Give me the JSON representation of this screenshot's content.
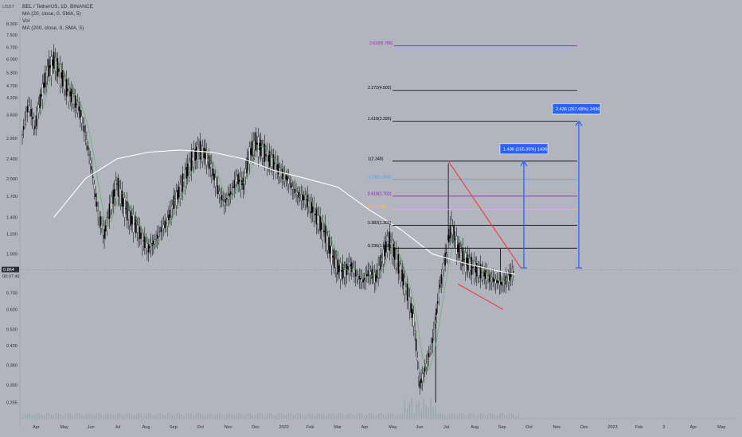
{
  "header": {
    "symbol_line": "BEL / TetherUS, 1D, BINANCE",
    "indicators": [
      "MA (20, close, 0, SMA, 5)",
      "Vol",
      "MA (200, close, 0, SMA, 5)"
    ],
    "currency": "USDT"
  },
  "chart_data": {
    "type": "candlestick",
    "scale": "log",
    "ylim": [
      0.24,
      8.3
    ],
    "y_ticks": [
      "8.300",
      "7.500",
      "6.700",
      "6.000",
      "5.300",
      "4.700",
      "4.200",
      "3.600",
      "2.900",
      "2.400",
      "2.000",
      "1.700",
      "1.400",
      "1.200",
      "1.000",
      "0.864",
      "0.700",
      "0.600",
      "0.500",
      "0.430",
      "0.360",
      "0.300",
      "0.255"
    ],
    "y_tick_values": [
      8.3,
      7.5,
      6.7,
      6.0,
      5.3,
      4.7,
      4.2,
      3.6,
      2.9,
      2.4,
      2.0,
      1.7,
      1.4,
      1.2,
      1.0,
      0.864,
      0.7,
      0.6,
      0.5,
      0.43,
      0.36,
      0.3,
      0.255
    ],
    "x_ticks": [
      "Apr",
      "May",
      "Jun",
      "Jul",
      "Aug",
      "Sep",
      "Oct",
      "Nov",
      "Dec",
      "2022",
      "Feb",
      "Mar",
      "Apr",
      "May",
      "Jun",
      "Jul",
      "Aug",
      "Sep",
      "Oct",
      "Nov",
      "Dec",
      "2023",
      "Feb",
      "3",
      "Apr",
      "May"
    ],
    "last_price": {
      "label": "0.864",
      "countdown": "00:07:46",
      "value": 0.864
    },
    "price_path": [
      [
        0,
        3.0
      ],
      [
        4,
        4.0
      ],
      [
        8,
        3.2
      ],
      [
        12,
        4.3
      ],
      [
        16,
        5.4
      ],
      [
        20,
        5.9
      ],
      [
        24,
        5.3
      ],
      [
        28,
        4.6
      ],
      [
        32,
        4.2
      ],
      [
        36,
        3.8
      ],
      [
        40,
        3.0
      ],
      [
        44,
        2.2
      ],
      [
        48,
        1.45
      ],
      [
        52,
        1.2
      ],
      [
        56,
        1.55
      ],
      [
        60,
        1.9
      ],
      [
        64,
        1.6
      ],
      [
        68,
        1.4
      ],
      [
        72,
        1.3
      ],
      [
        76,
        1.15
      ],
      [
        80,
        1.05
      ],
      [
        84,
        1.12
      ],
      [
        88,
        1.25
      ],
      [
        92,
        1.35
      ],
      [
        96,
        1.6
      ],
      [
        100,
        1.8
      ],
      [
        104,
        2.1
      ],
      [
        108,
        2.4
      ],
      [
        112,
        2.6
      ],
      [
        116,
        2.5
      ],
      [
        120,
        2.2
      ],
      [
        124,
        1.8
      ],
      [
        128,
        1.6
      ],
      [
        132,
        1.75
      ],
      [
        136,
        2.0
      ],
      [
        140,
        1.9
      ],
      [
        144,
        2.5
      ],
      [
        148,
        2.8
      ],
      [
        152,
        2.6
      ],
      [
        156,
        2.4
      ],
      [
        160,
        2.3
      ],
      [
        164,
        2.1
      ],
      [
        168,
        2.0
      ],
      [
        172,
        1.8
      ],
      [
        176,
        1.7
      ],
      [
        180,
        1.65
      ],
      [
        184,
        1.5
      ],
      [
        188,
        1.35
      ],
      [
        192,
        1.2
      ],
      [
        196,
        1.0
      ],
      [
        200,
        0.88
      ],
      [
        204,
        0.84
      ],
      [
        208,
        0.9
      ],
      [
        212,
        0.82
      ],
      [
        216,
        0.78
      ],
      [
        220,
        0.85
      ],
      [
        224,
        0.8
      ],
      [
        228,
        0.95
      ],
      [
        232,
        1.15
      ],
      [
        236,
        1.0
      ],
      [
        240,
        0.85
      ],
      [
        244,
        0.7
      ],
      [
        248,
        0.55
      ],
      [
        252,
        0.3
      ],
      [
        256,
        0.36
      ],
      [
        260,
        0.45
      ],
      [
        264,
        0.7
      ],
      [
        268,
        0.95
      ],
      [
        272,
        1.3
      ],
      [
        276,
        1.05
      ],
      [
        280,
        0.95
      ],
      [
        284,
        0.9
      ],
      [
        288,
        0.86
      ],
      [
        292,
        0.84
      ],
      [
        296,
        0.8
      ],
      [
        300,
        0.78
      ],
      [
        304,
        0.76
      ],
      [
        308,
        0.8
      ],
      [
        312,
        0.86
      ]
    ],
    "price_spikes": [
      [
        262,
        0.255
      ],
      [
        270,
        2.3
      ],
      [
        303,
        1.05
      ]
    ],
    "ma200_path": [
      [
        20,
        1.4
      ],
      [
        40,
        2.0
      ],
      [
        60,
        2.4
      ],
      [
        80,
        2.55
      ],
      [
        100,
        2.6
      ],
      [
        120,
        2.55
      ],
      [
        140,
        2.4
      ],
      [
        160,
        2.15
      ],
      [
        180,
        2.0
      ],
      [
        200,
        1.85
      ],
      [
        220,
        1.5
      ],
      [
        240,
        1.25
      ],
      [
        260,
        1.0
      ],
      [
        280,
        0.92
      ],
      [
        300,
        0.86
      ],
      [
        312,
        0.83
      ]
    ],
    "fib_levels": [
      {
        "label": "2.618(6.780)",
        "value": 6.78,
        "color": "#9c27b0"
      },
      {
        "label": "2.272(4.502)",
        "value": 4.502,
        "color": "#000000"
      },
      {
        "label": "1.618(3.395)",
        "value": 3.395,
        "color": "#000000"
      },
      {
        "label": "1(2.348)",
        "value": 2.348,
        "color": "#000000"
      },
      {
        "label": "0.786(1.985)",
        "value": 1.985,
        "color": "#42a5f5"
      },
      {
        "label": "0.618(1.702)",
        "value": 1.702,
        "color": "#7b1fa2"
      },
      {
        "label": "0.5(1.508)",
        "value": 1.508,
        "color": "#fbc02d"
      },
      {
        "label": "0.382(1.302)",
        "value": 1.302,
        "color": "#000000"
      },
      {
        "label": "0.236(1.055)",
        "value": 1.055,
        "color": "#000000"
      }
    ],
    "targets": [
      {
        "label": "1.436 (155.35%) 1436",
        "from": 0.88,
        "to": 2.348
      },
      {
        "label": "2.436 (267.68%) 2436",
        "from": 0.88,
        "to": 3.395
      }
    ],
    "wedge": {
      "top_start": 2.348,
      "bottom_start": 0.76,
      "apex": 0.6
    }
  },
  "colors": {
    "background": "#b2b5be",
    "candle": "#000000",
    "ma20": "#4caf50",
    "ma200": "#ffffff",
    "wedge": "#f23645",
    "target": "#2962ff",
    "target_box": "#2962ff",
    "axis_text": "#2a2e39",
    "volume": "#8ba3a6"
  }
}
